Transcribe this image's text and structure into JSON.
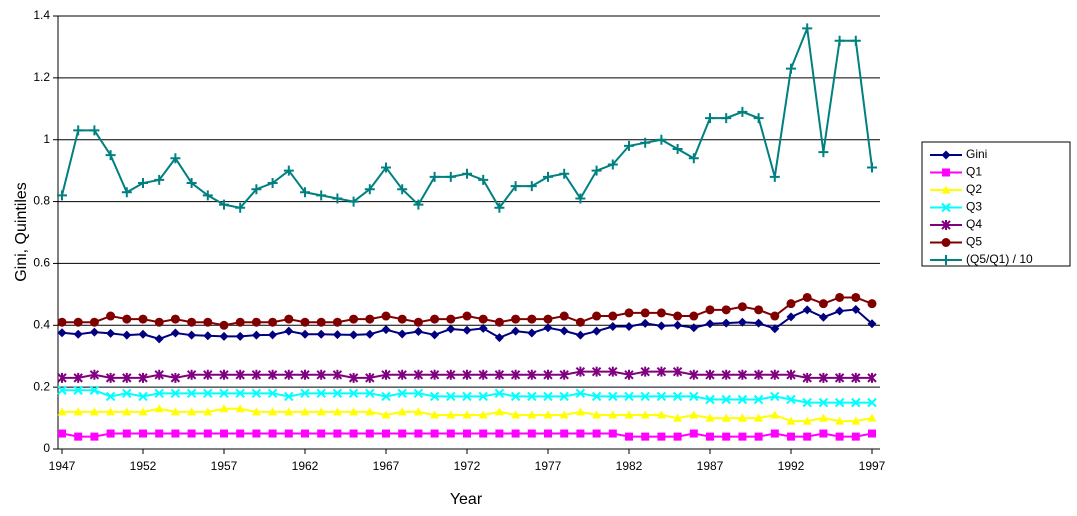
{
  "chart_data": {
    "type": "line",
    "x_label": "Year",
    "y_label": "Gini, Quintiles",
    "x": [
      1947,
      1948,
      1949,
      1950,
      1951,
      1952,
      1953,
      1954,
      1955,
      1956,
      1957,
      1958,
      1959,
      1960,
      1961,
      1962,
      1963,
      1964,
      1965,
      1966,
      1967,
      1968,
      1969,
      1970,
      1971,
      1972,
      1973,
      1974,
      1975,
      1976,
      1977,
      1978,
      1979,
      1980,
      1981,
      1982,
      1983,
      1984,
      1985,
      1986,
      1987,
      1988,
      1989,
      1990,
      1991,
      1992,
      1993,
      1994,
      1995,
      1996,
      1997
    ],
    "xlim": [
      1947,
      1997
    ],
    "xticks": [
      1947,
      1952,
      1957,
      1962,
      1967,
      1972,
      1977,
      1982,
      1987,
      1992,
      1997
    ],
    "ylim": [
      0,
      1.4
    ],
    "yticks": [
      0,
      0.2,
      0.4,
      0.6,
      0.8,
      1,
      1.2,
      1.4
    ],
    "grid": true,
    "legend": "right",
    "series": [
      {
        "name": "Gini",
        "color": "#000080",
        "marker": "diamond",
        "values": [
          0.376,
          0.371,
          0.378,
          0.374,
          0.368,
          0.371,
          0.356,
          0.375,
          0.368,
          0.366,
          0.364,
          0.364,
          0.368,
          0.369,
          0.381,
          0.371,
          0.371,
          0.37,
          0.369,
          0.371,
          0.386,
          0.372,
          0.38,
          0.369,
          0.388,
          0.384,
          0.39,
          0.36,
          0.381,
          0.375,
          0.392,
          0.382,
          0.368,
          0.381,
          0.396,
          0.396,
          0.406,
          0.398,
          0.4,
          0.392,
          0.405,
          0.407,
          0.41,
          0.407,
          0.389,
          0.427,
          0.45,
          0.426,
          0.446,
          0.451,
          0.405
        ]
      },
      {
        "name": "Q1",
        "color": "#ff00ff",
        "marker": "square",
        "values": [
          0.05,
          0.04,
          0.04,
          0.05,
          0.05,
          0.05,
          0.05,
          0.05,
          0.05,
          0.05,
          0.05,
          0.05,
          0.05,
          0.05,
          0.05,
          0.05,
          0.05,
          0.05,
          0.05,
          0.05,
          0.05,
          0.05,
          0.05,
          0.05,
          0.05,
          0.05,
          0.05,
          0.05,
          0.05,
          0.05,
          0.05,
          0.05,
          0.05,
          0.05,
          0.05,
          0.04,
          0.04,
          0.04,
          0.04,
          0.05,
          0.04,
          0.04,
          0.04,
          0.04,
          0.05,
          0.04,
          0.04,
          0.05,
          0.04,
          0.04,
          0.05
        ]
      },
      {
        "name": "Q2",
        "color": "#ffff00",
        "marker": "triangle",
        "values": [
          0.12,
          0.12,
          0.12,
          0.12,
          0.12,
          0.12,
          0.13,
          0.12,
          0.12,
          0.12,
          0.13,
          0.13,
          0.12,
          0.12,
          0.12,
          0.12,
          0.12,
          0.12,
          0.12,
          0.12,
          0.11,
          0.12,
          0.12,
          0.11,
          0.11,
          0.11,
          0.11,
          0.12,
          0.11,
          0.11,
          0.11,
          0.11,
          0.12,
          0.11,
          0.11,
          0.11,
          0.11,
          0.11,
          0.1,
          0.11,
          0.1,
          0.1,
          0.1,
          0.1,
          0.11,
          0.09,
          0.09,
          0.1,
          0.09,
          0.09,
          0.1
        ]
      },
      {
        "name": "Q3",
        "color": "#00ffff",
        "marker": "x",
        "values": [
          0.19,
          0.19,
          0.19,
          0.17,
          0.18,
          0.17,
          0.18,
          0.18,
          0.18,
          0.18,
          0.18,
          0.18,
          0.18,
          0.18,
          0.17,
          0.18,
          0.18,
          0.18,
          0.18,
          0.18,
          0.17,
          0.18,
          0.18,
          0.17,
          0.17,
          0.17,
          0.17,
          0.18,
          0.17,
          0.17,
          0.17,
          0.17,
          0.18,
          0.17,
          0.17,
          0.17,
          0.17,
          0.17,
          0.17,
          0.17,
          0.16,
          0.16,
          0.16,
          0.16,
          0.17,
          0.16,
          0.15,
          0.15,
          0.15,
          0.15,
          0.15
        ]
      },
      {
        "name": "Q4",
        "color": "#800080",
        "marker": "asterisk",
        "values": [
          0.23,
          0.23,
          0.24,
          0.23,
          0.23,
          0.23,
          0.24,
          0.23,
          0.24,
          0.24,
          0.24,
          0.24,
          0.24,
          0.24,
          0.24,
          0.24,
          0.24,
          0.24,
          0.23,
          0.23,
          0.24,
          0.24,
          0.24,
          0.24,
          0.24,
          0.24,
          0.24,
          0.24,
          0.24,
          0.24,
          0.24,
          0.24,
          0.25,
          0.25,
          0.25,
          0.24,
          0.25,
          0.25,
          0.25,
          0.24,
          0.24,
          0.24,
          0.24,
          0.24,
          0.24,
          0.24,
          0.23,
          0.23,
          0.23,
          0.23,
          0.23
        ]
      },
      {
        "name": "Q5",
        "color": "#800000",
        "marker": "circle",
        "values": [
          0.41,
          0.41,
          0.41,
          0.43,
          0.42,
          0.42,
          0.41,
          0.42,
          0.41,
          0.41,
          0.4,
          0.41,
          0.41,
          0.41,
          0.42,
          0.41,
          0.41,
          0.41,
          0.42,
          0.42,
          0.43,
          0.42,
          0.41,
          0.42,
          0.42,
          0.43,
          0.42,
          0.41,
          0.42,
          0.42,
          0.42,
          0.43,
          0.41,
          0.43,
          0.43,
          0.44,
          0.44,
          0.44,
          0.43,
          0.43,
          0.45,
          0.45,
          0.46,
          0.45,
          0.43,
          0.47,
          0.49,
          0.47,
          0.49,
          0.49,
          0.47
        ]
      },
      {
        "name": "(Q5/Q1) / 10",
        "color": "#008080",
        "marker": "plus",
        "values": [
          0.82,
          1.03,
          1.03,
          0.95,
          0.83,
          0.86,
          0.87,
          0.94,
          0.86,
          0.82,
          0.79,
          0.78,
          0.84,
          0.86,
          0.9,
          0.83,
          0.82,
          0.81,
          0.8,
          0.84,
          0.91,
          0.84,
          0.79,
          0.88,
          0.88,
          0.89,
          0.87,
          0.78,
          0.85,
          0.85,
          0.88,
          0.89,
          0.81,
          0.9,
          0.92,
          0.98,
          0.99,
          1.0,
          0.97,
          0.94,
          1.07,
          1.07,
          1.09,
          1.07,
          0.88,
          1.23,
          1.36,
          0.96,
          1.32,
          1.32,
          0.91
        ]
      }
    ]
  }
}
